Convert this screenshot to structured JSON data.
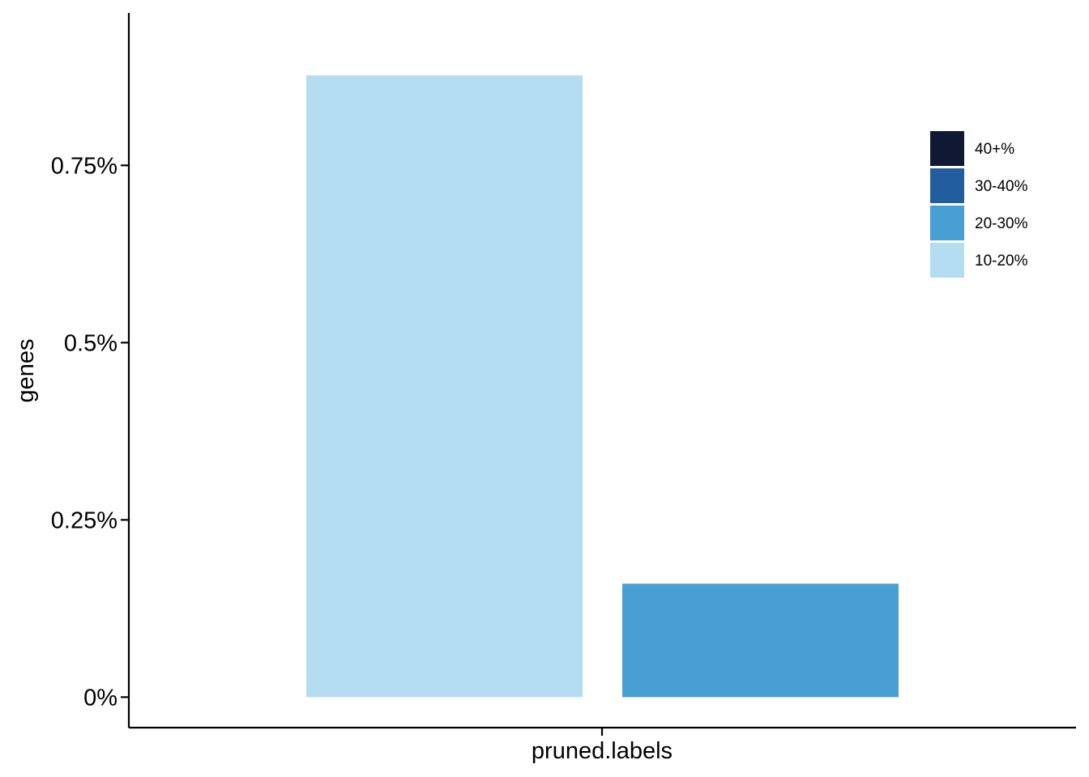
{
  "chart_data": {
    "type": "bar",
    "xlabel": "pruned.labels",
    "ylabel": "genes",
    "x_tick": "pruned.labels",
    "ylim": [
      -0.043,
      0.965
    ],
    "y_ticks": [
      {
        "value": 0.0,
        "label": "0%"
      },
      {
        "value": 0.25,
        "label": "0.25%"
      },
      {
        "value": 0.5,
        "label": "0.5%"
      },
      {
        "value": 0.75,
        "label": "0.75%"
      }
    ],
    "bars": [
      {
        "category": "10-20%",
        "value": 0.877
      },
      {
        "category": "20-30%",
        "value": 0.16
      }
    ],
    "legend": {
      "position": "right",
      "entries": [
        {
          "label": "40+%",
          "color": "#111833"
        },
        {
          "label": "30-40%",
          "color": "#225e9d"
        },
        {
          "label": "20-30%",
          "color": "#479fd3"
        },
        {
          "label": "10-20%",
          "color": "#b5ddf1"
        }
      ]
    },
    "grid": false
  }
}
